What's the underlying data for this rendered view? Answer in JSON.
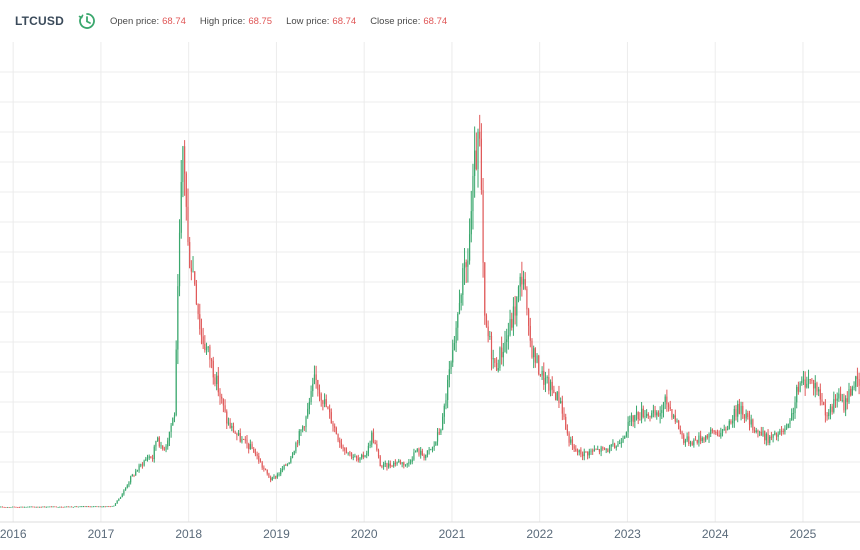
{
  "header": {
    "symbol": "LTCUSD",
    "open_label": "Open price:",
    "open_value": "68.74",
    "high_label": "High price:",
    "high_value": "68.75",
    "low_label": "Low price:",
    "low_value": "68.74",
    "close_label": "Close price:",
    "close_value": "68.74"
  },
  "colors": {
    "up": "#3aa76d",
    "down": "#e05a5a",
    "grid": "#ececec",
    "axis_text": "#5a6a7a",
    "clock": "#3aa76d"
  },
  "chart_data": {
    "type": "candlestick",
    "title": "LTCUSD",
    "x_ticks": [
      "2016",
      "2017",
      "2018",
      "2019",
      "2020",
      "2021",
      "2022",
      "2023",
      "2024",
      "2025"
    ],
    "x_range": [
      2015.85,
      2025.65
    ],
    "y_range": [
      -10,
      425
    ],
    "grid": true,
    "y_axis_labels_shown": false,
    "price_path": [
      [
        2015.85,
        3.6
      ],
      [
        2016.4,
        3.8
      ],
      [
        2016.9,
        4.0
      ],
      [
        2017.15,
        4.2
      ],
      [
        2017.25,
        15
      ],
      [
        2017.35,
        30
      ],
      [
        2017.45,
        40
      ],
      [
        2017.55,
        50
      ],
      [
        2017.6,
        48
      ],
      [
        2017.65,
        70
      ],
      [
        2017.7,
        55
      ],
      [
        2017.75,
        60
      ],
      [
        2017.85,
        90
      ],
      [
        2017.9,
        230
      ],
      [
        2017.95,
        340
      ],
      [
        2018.0,
        240
      ],
      [
        2018.08,
        210
      ],
      [
        2018.15,
        160
      ],
      [
        2018.25,
        140
      ],
      [
        2018.35,
        110
      ],
      [
        2018.45,
        80
      ],
      [
        2018.6,
        65
      ],
      [
        2018.75,
        55
      ],
      [
        2018.85,
        40
      ],
      [
        2018.95,
        28
      ],
      [
        2019.05,
        35
      ],
      [
        2019.15,
        45
      ],
      [
        2019.25,
        65
      ],
      [
        2019.35,
        85
      ],
      [
        2019.45,
        120
      ],
      [
        2019.5,
        110
      ],
      [
        2019.6,
        90
      ],
      [
        2019.75,
        60
      ],
      [
        2019.85,
        52
      ],
      [
        2019.95,
        45
      ],
      [
        2020.05,
        55
      ],
      [
        2020.1,
        70
      ],
      [
        2020.2,
        40
      ],
      [
        2020.3,
        42
      ],
      [
        2020.4,
        45
      ],
      [
        2020.5,
        42
      ],
      [
        2020.6,
        55
      ],
      [
        2020.7,
        50
      ],
      [
        2020.8,
        58
      ],
      [
        2020.9,
        80
      ],
      [
        2020.97,
        120
      ],
      [
        2021.05,
        150
      ],
      [
        2021.1,
        200
      ],
      [
        2021.18,
        220
      ],
      [
        2021.22,
        260
      ],
      [
        2021.28,
        320
      ],
      [
        2021.33,
        330
      ],
      [
        2021.38,
        170
      ],
      [
        2021.45,
        150
      ],
      [
        2021.5,
        130
      ],
      [
        2021.55,
        140
      ],
      [
        2021.65,
        160
      ],
      [
        2021.75,
        190
      ],
      [
        2021.82,
        220
      ],
      [
        2021.88,
        160
      ],
      [
        2021.95,
        140
      ],
      [
        2022.05,
        120
      ],
      [
        2022.15,
        110
      ],
      [
        2022.25,
        100
      ],
      [
        2022.32,
        70
      ],
      [
        2022.4,
        55
      ],
      [
        2022.5,
        52
      ],
      [
        2022.65,
        55
      ],
      [
        2022.8,
        56
      ],
      [
        2022.9,
        60
      ],
      [
        2023.0,
        75
      ],
      [
        2023.08,
        85
      ],
      [
        2023.2,
        90
      ],
      [
        2023.35,
        85
      ],
      [
        2023.45,
        100
      ],
      [
        2023.55,
        85
      ],
      [
        2023.65,
        65
      ],
      [
        2023.75,
        63
      ],
      [
        2023.9,
        68
      ],
      [
        2024.0,
        72
      ],
      [
        2024.1,
        70
      ],
      [
        2024.2,
        85
      ],
      [
        2024.3,
        95
      ],
      [
        2024.4,
        80
      ],
      [
        2024.5,
        72
      ],
      [
        2024.62,
        65
      ],
      [
        2024.75,
        70
      ],
      [
        2024.85,
        75
      ],
      [
        2024.95,
        110
      ],
      [
        2025.05,
        120
      ],
      [
        2025.15,
        115
      ],
      [
        2025.25,
        95
      ],
      [
        2025.3,
        85
      ],
      [
        2025.4,
        105
      ],
      [
        2025.47,
        95
      ],
      [
        2025.55,
        110
      ],
      [
        2025.6,
        118
      ],
      [
        2025.65,
        112
      ]
    ]
  }
}
